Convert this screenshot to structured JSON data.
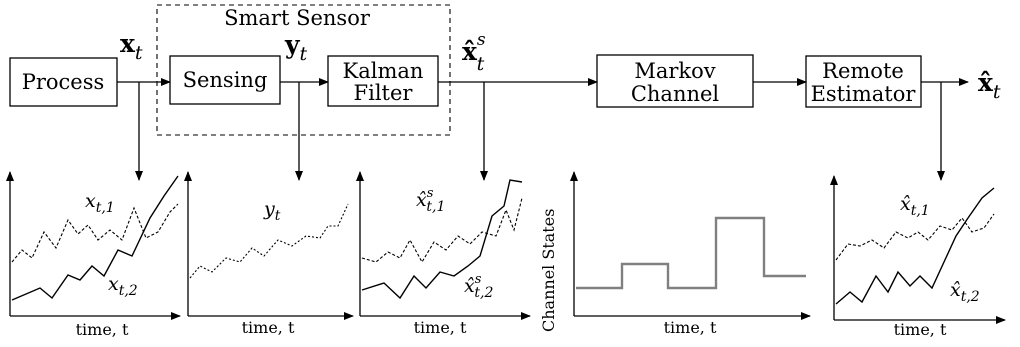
{
  "blocks": {
    "process": "Process",
    "smart_sensor": "Smart Sensor",
    "sensing": "Sensing",
    "kalman_line1": "Kalman",
    "kalman_line2": "Filter",
    "markov_line1": "Markov",
    "markov_line2": "Channel",
    "remote_line1": "Remote",
    "remote_line2": "Estimator"
  },
  "signals": {
    "x_t": "x",
    "x_t_sub": "t",
    "y_t": "y",
    "y_t_sub": "t",
    "xs_hat": "x̂",
    "xs_sub": "t",
    "xs_sup": "s",
    "xhat_out": "x̂",
    "xhat_sub": "t"
  },
  "plots": {
    "p1_series1": "x",
    "p1_series1_sub": "t,1",
    "p1_series2": "x",
    "p1_series2_sub": "t,2",
    "p2_series": "y",
    "p2_series_sub": "t",
    "p3_series1": "x̂",
    "p3_series1_sub": "t,1",
    "p3_series1_sup": "s",
    "p3_series2": "x̂",
    "p3_series2_sub": "t,2",
    "p3_series2_sup": "s",
    "p4_ylabel": "Channel States",
    "p5_series1": "x̂",
    "p5_series1_sub": "t,1",
    "p5_series2": "x̂",
    "p5_series2_sub": "t,2",
    "xlabel": "time, t"
  },
  "colors": {
    "line": "#000000",
    "channel_state": "#808080"
  }
}
